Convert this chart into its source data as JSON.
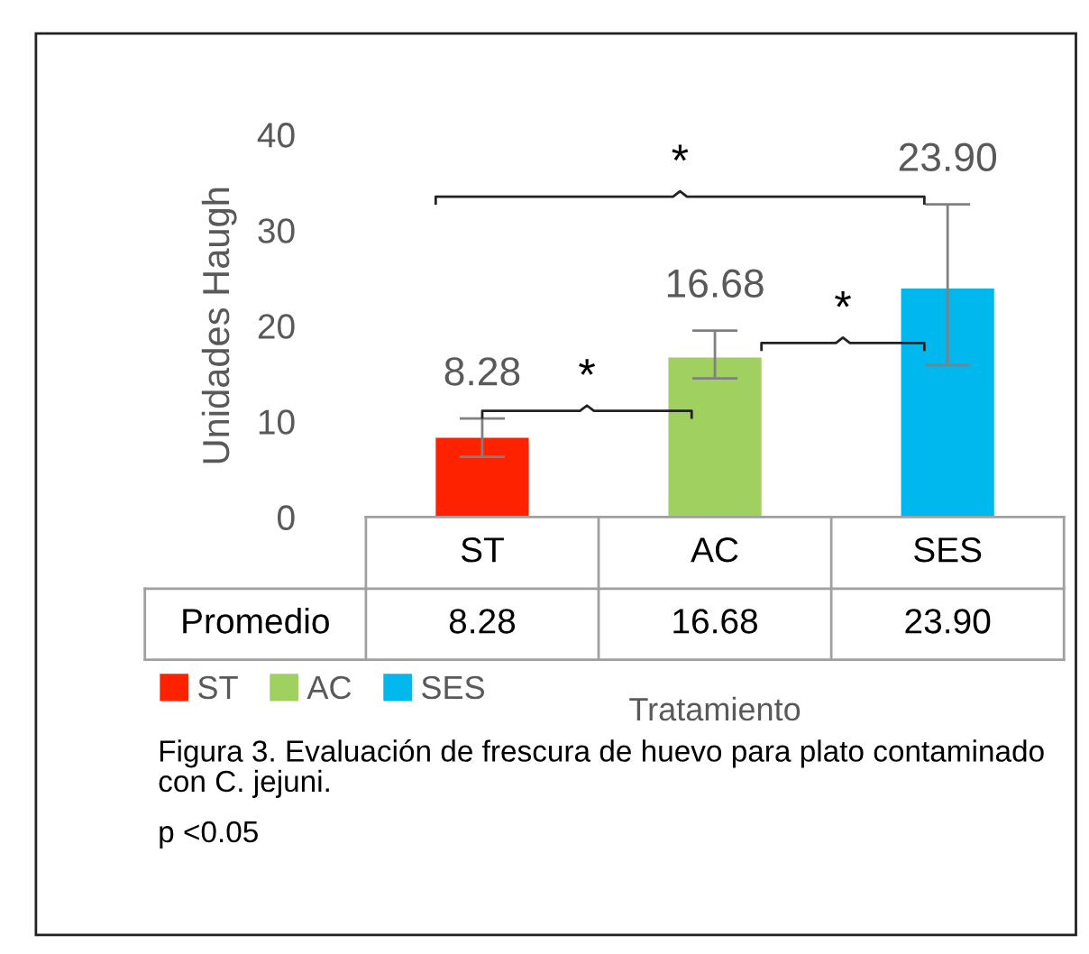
{
  "chart_data": {
    "type": "bar",
    "ylabel": "Unidades Haugh",
    "xlabel": "Tratamiento",
    "categories": [
      "ST",
      "AC",
      "SES"
    ],
    "series": [
      {
        "name": "ST",
        "color": "#ff2200",
        "values": [
          8.28,
          null,
          null
        ],
        "value_labels": [
          "8.28",
          null,
          null
        ],
        "errors": [
          [
            6.3,
            10.3
          ],
          null,
          null
        ]
      },
      {
        "name": "AC",
        "color": "#a0d060",
        "values": [
          null,
          16.68,
          null
        ],
        "value_labels": [
          null,
          "16.68",
          null
        ],
        "errors": [
          null,
          [
            14.5,
            19.5
          ],
          null
        ]
      },
      {
        "name": "SES",
        "color": "#00b8ee",
        "values": [
          null,
          null,
          23.9
        ],
        "value_labels": [
          null,
          null,
          "23.90"
        ],
        "errors": [
          null,
          null,
          [
            15.9,
            32.7
          ]
        ]
      }
    ],
    "ylim": [
      0,
      40
    ],
    "yticks": [
      0,
      10,
      20,
      30,
      40
    ],
    "grid": false,
    "legend": "bottom left",
    "annotations": [
      "*",
      "*",
      "*",
      "Promedio",
      "Figura 3. Evaluación de frescura de huevo para plato contaminado con C. jejuni.",
      "p <0.05"
    ]
  }
}
